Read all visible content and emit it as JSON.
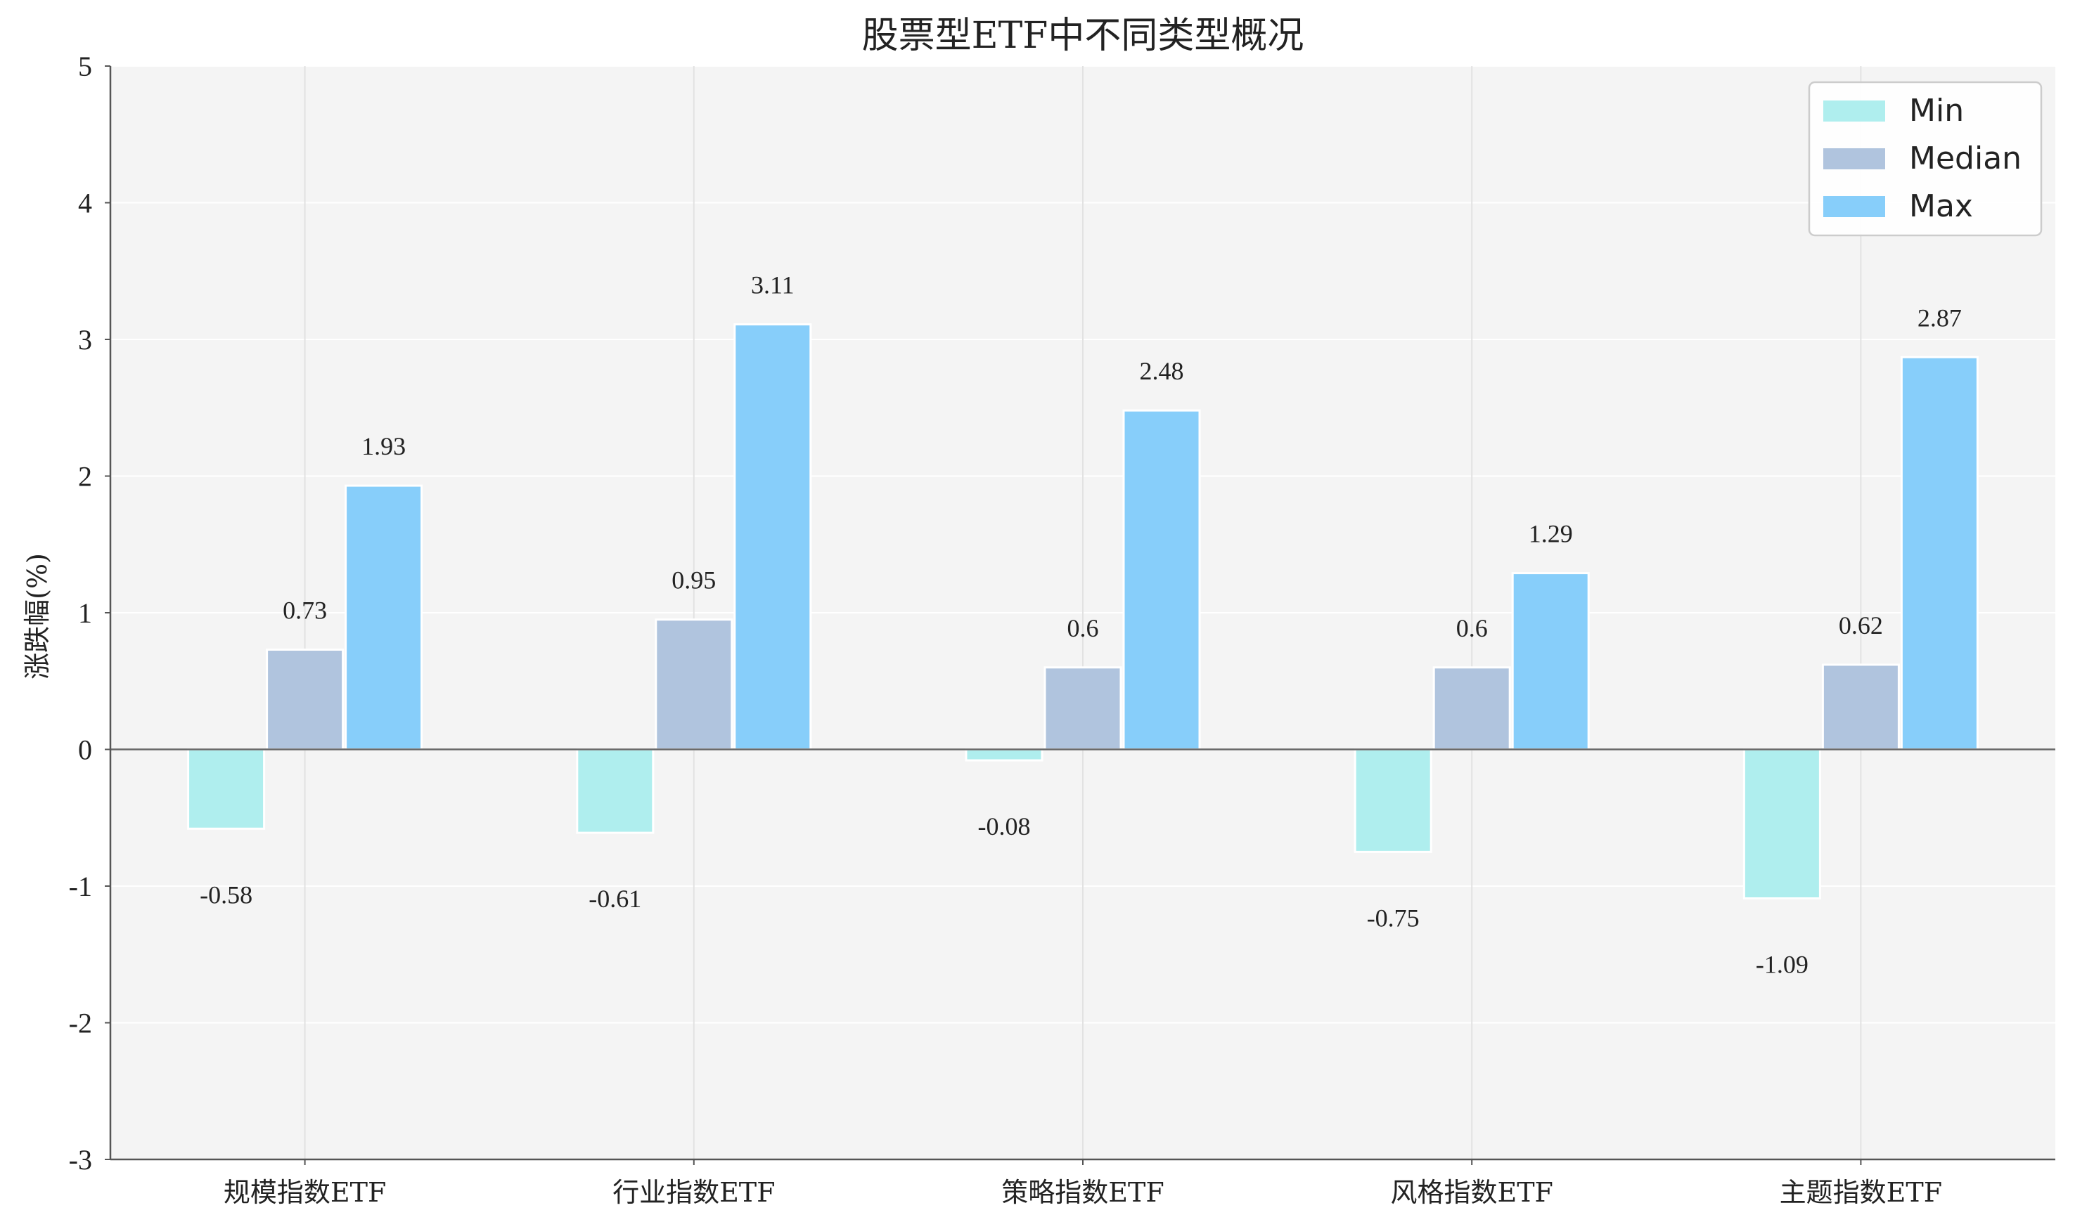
{
  "chart_data": {
    "type": "bar",
    "title": "股票型ETF中不同类型概况",
    "ylabel": "涨跌幅(%)",
    "xlabel": "",
    "ylim": [
      -3,
      5
    ],
    "yticks": [
      -3,
      -2,
      -1,
      0,
      1,
      2,
      3,
      4,
      5
    ],
    "ytick_labels": [
      "-3",
      "-2",
      "-1",
      "0",
      "1",
      "2",
      "3",
      "4",
      "5"
    ],
    "categories": [
      "规模指数ETF",
      "行业指数ETF",
      "策略指数ETF",
      "风格指数ETF",
      "主题指数ETF"
    ],
    "series": [
      {
        "name": "Min",
        "values": [
          -0.58,
          -0.61,
          -0.08,
          -0.75,
          -1.09
        ],
        "labels": [
          "-0.58",
          "-0.61",
          "-0.08",
          "-0.75",
          "-1.09"
        ],
        "color": "#afeeee"
      },
      {
        "name": "Median",
        "values": [
          0.73,
          0.95,
          0.6,
          0.6,
          0.62
        ],
        "labels": [
          "0.73",
          "0.95",
          "0.6",
          "0.6",
          "0.62"
        ],
        "color": "#b0c4de"
      },
      {
        "name": "Max",
        "values": [
          1.93,
          3.11,
          2.48,
          1.29,
          2.87
        ],
        "labels": [
          "1.93",
          "3.11",
          "2.48",
          "1.29",
          "2.87"
        ],
        "color": "#87cefa"
      }
    ],
    "grid": true,
    "legend_position": "top-right",
    "background_color": "#f4f4f4",
    "zero_line_color": "#666666"
  }
}
